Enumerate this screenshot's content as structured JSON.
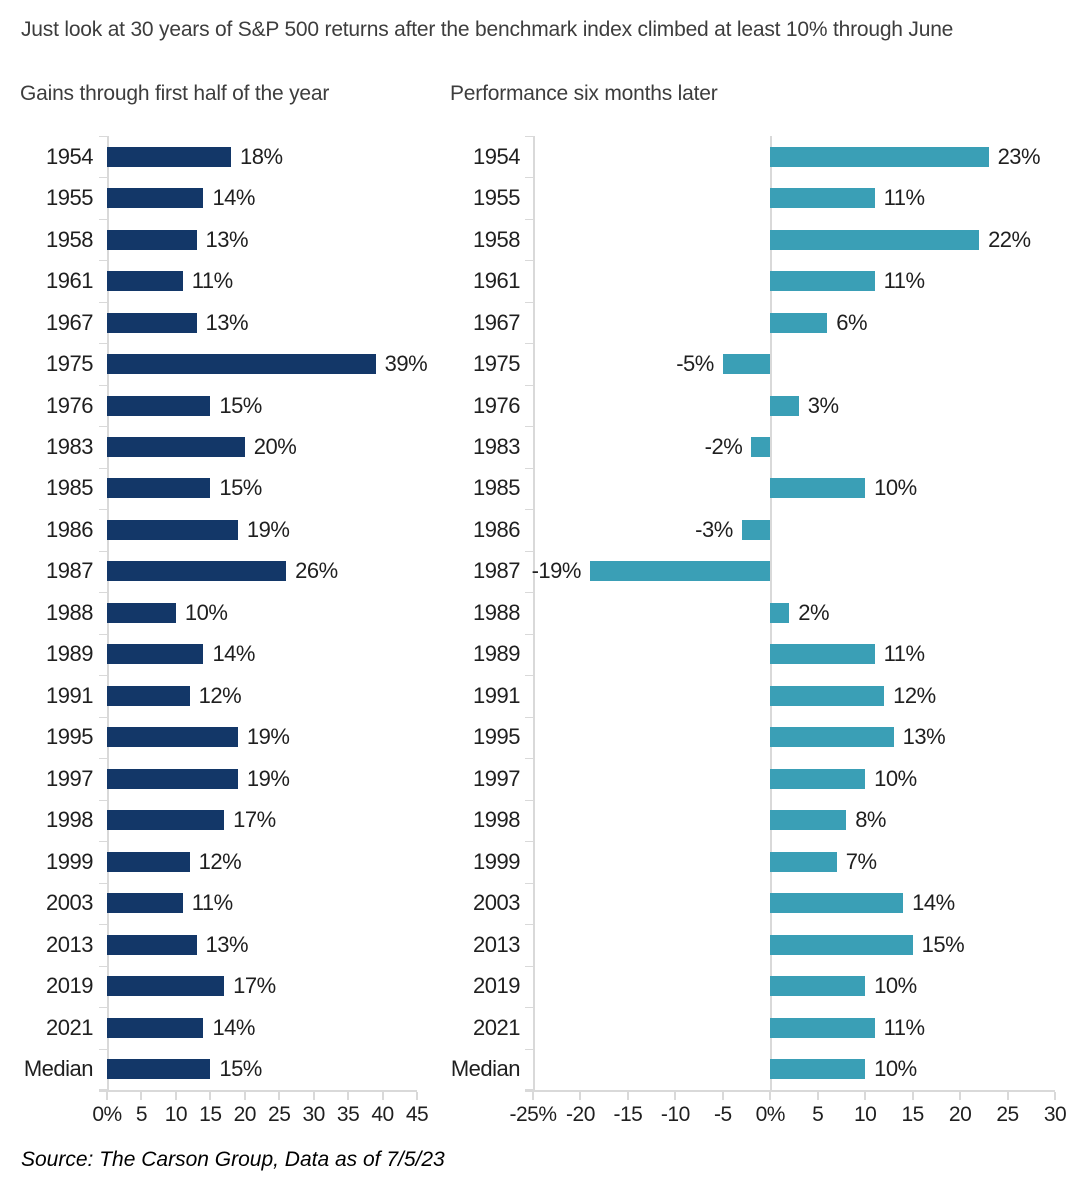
{
  "headline": "Just look at 30 years of S&P 500 returns after the benchmark index climbed at least 10% through June",
  "source_note": "Source: The Carson Group, Data as of 7/5/23",
  "colors": {
    "navy": "#133768",
    "teal": "#3A9FB6",
    "axis": "#d9d9d9",
    "text": "#1f1f1f",
    "heading": "#3d3d3d"
  },
  "chart_data": [
    {
      "type": "bar",
      "orientation": "horizontal",
      "title": "Gains through first half of the year",
      "bar_color": "#133768",
      "categories": [
        "1954",
        "1955",
        "1958",
        "1961",
        "1967",
        "1975",
        "1976",
        "1983",
        "1985",
        "1986",
        "1987",
        "1988",
        "1989",
        "1991",
        "1995",
        "1997",
        "1998",
        "1999",
        "2003",
        "2013",
        "2019",
        "2021",
        "Median"
      ],
      "values": [
        18,
        14,
        13,
        11,
        13,
        39,
        15,
        20,
        15,
        19,
        26,
        10,
        14,
        12,
        19,
        19,
        17,
        12,
        11,
        13,
        17,
        14,
        15
      ],
      "labels": [
        "18%",
        "14%",
        "13%",
        "11%",
        "13%",
        "39%",
        "15%",
        "20%",
        "15%",
        "19%",
        "26%",
        "10%",
        "14%",
        "12%",
        "19%",
        "19%",
        "17%",
        "12%",
        "11%",
        "13%",
        "17%",
        "14%",
        "15%"
      ],
      "xlim": [
        0,
        45
      ],
      "grid": false,
      "xticks": [
        {
          "v": 0,
          "label": "0%"
        },
        {
          "v": 5,
          "label": "5"
        },
        {
          "v": 10,
          "label": "10"
        },
        {
          "v": 15,
          "label": "15"
        },
        {
          "v": 20,
          "label": "20"
        },
        {
          "v": 25,
          "label": "25"
        },
        {
          "v": 30,
          "label": "30"
        },
        {
          "v": 35,
          "label": "35"
        },
        {
          "v": 40,
          "label": "40"
        },
        {
          "v": 45,
          "label": "45"
        }
      ]
    },
    {
      "type": "bar",
      "orientation": "horizontal",
      "title": "Performance six months later",
      "bar_color": "#3A9FB6",
      "categories": [
        "1954",
        "1955",
        "1958",
        "1961",
        "1967",
        "1975",
        "1976",
        "1983",
        "1985",
        "1986",
        "1987",
        "1988",
        "1989",
        "1991",
        "1995",
        "1997",
        "1998",
        "1999",
        "2003",
        "2013",
        "2019",
        "2021",
        "Median"
      ],
      "values": [
        23,
        11,
        22,
        11,
        6,
        -5,
        3,
        -2,
        10,
        -3,
        -19,
        2,
        11,
        12,
        13,
        10,
        8,
        7,
        14,
        15,
        10,
        11,
        10
      ],
      "labels": [
        "23%",
        "11%",
        "22%",
        "11%",
        "6%",
        "-5%",
        "3%",
        "-2%",
        "10%",
        "-3%",
        "-19%",
        "2%",
        "11%",
        "12%",
        "13%",
        "10%",
        "8%",
        "7%",
        "14%",
        "15%",
        "10%",
        "11%",
        "10%"
      ],
      "xlim": [
        -25,
        30
      ],
      "grid": false,
      "xticks": [
        {
          "v": -25,
          "label": "-25%"
        },
        {
          "v": -20,
          "label": "-20"
        },
        {
          "v": -15,
          "label": "-15"
        },
        {
          "v": -10,
          "label": "-10"
        },
        {
          "v": -5,
          "label": "-5"
        },
        {
          "v": 0,
          "label": "0%"
        },
        {
          "v": 5,
          "label": "5"
        },
        {
          "v": 10,
          "label": "10"
        },
        {
          "v": 15,
          "label": "15"
        },
        {
          "v": 20,
          "label": "20"
        },
        {
          "v": 25,
          "label": "25"
        },
        {
          "v": 30,
          "label": "30"
        }
      ]
    }
  ]
}
